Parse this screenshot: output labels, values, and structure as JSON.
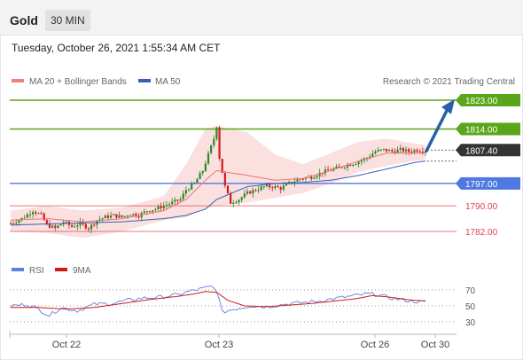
{
  "header": {
    "instrument": "Gold",
    "timeframe": "30 MIN"
  },
  "timestamp": "Tuesday, October 26, 2021 1:55:34 AM CET",
  "legend": {
    "bollinger": "MA 20 + Bollinger Bands",
    "ma50": "MA 50",
    "copyright": "Research © 2021 Trading Central"
  },
  "rsi_legend": {
    "rsi": "RSI",
    "ma9": "9MA"
  },
  "colors": {
    "resistance": "#5aa61a",
    "support_main": "#4f79e0",
    "support_minor": "#e0424a",
    "candle_up": "#2a8a2a",
    "candle_down": "#d11a1a",
    "bollinger_fill": "#fad6d6",
    "ma20": "#f07070",
    "ma50": "#3a5fb0",
    "arrow": "#2c5fa8",
    "current_price": "#333333",
    "rsi": "#5b7fe0",
    "rsi_ma": "#d31818"
  },
  "chart_data": [
    {
      "type": "candlestick",
      "x_ticks": [
        "Oct 22",
        "Oct 23",
        "Oct 26",
        "Oct 30"
      ],
      "y_range": [
        1778,
        1826
      ],
      "levels": [
        {
          "value": 1823.0,
          "label": "1823.00",
          "kind": "resistance"
        },
        {
          "value": 1814.0,
          "label": "1814.00",
          "kind": "resistance"
        },
        {
          "value": 1807.4,
          "label": "1807.40",
          "kind": "current"
        },
        {
          "value": 1797.0,
          "label": "1797.00",
          "kind": "support-main"
        },
        {
          "value": 1790.0,
          "label": "1790.00",
          "kind": "support-minor"
        },
        {
          "value": 1782.0,
          "label": "1782.00",
          "kind": "support-minor"
        }
      ],
      "price_path": [
        [
          0,
          1784.5
        ],
        [
          4,
          1786
        ],
        [
          8,
          1788.5
        ],
        [
          11,
          1787
        ],
        [
          13,
          1784
        ],
        [
          16,
          1783
        ],
        [
          19,
          1785
        ],
        [
          22,
          1783.5
        ],
        [
          25,
          1784.5
        ],
        [
          28,
          1783
        ],
        [
          31,
          1785.5
        ],
        [
          34,
          1786.5
        ],
        [
          37,
          1787
        ],
        [
          40,
          1786.5
        ],
        [
          43,
          1787.5
        ],
        [
          46,
          1787
        ],
        [
          49,
          1788.5
        ],
        [
          52,
          1789
        ],
        [
          55,
          1790
        ],
        [
          58,
          1791
        ],
        [
          61,
          1792
        ],
        [
          63,
          1795
        ],
        [
          66,
          1797
        ],
        [
          69,
          1801
        ],
        [
          71,
          1806
        ],
        [
          73,
          1811
        ],
        [
          74,
          1815
        ],
        [
          75,
          1805
        ],
        [
          77,
          1796
        ],
        [
          79,
          1791
        ],
        [
          82,
          1792
        ],
        [
          85,
          1794
        ],
        [
          88,
          1795
        ],
        [
          91,
          1796
        ],
        [
          94,
          1796
        ],
        [
          97,
          1795.5
        ],
        [
          100,
          1797
        ],
        [
          104,
          1798.5
        ],
        [
          108,
          1799
        ],
        [
          112,
          1800.5
        ],
        [
          116,
          1801.5
        ],
        [
          120,
          1802.5
        ],
        [
          124,
          1803.5
        ],
        [
          128,
          1805
        ],
        [
          131,
          1807
        ],
        [
          134,
          1807.5
        ],
        [
          137,
          1807
        ],
        [
          140,
          1807.5
        ],
        [
          143,
          1807
        ],
        [
          146,
          1807.5
        ],
        [
          149,
          1807.3
        ]
      ],
      "bollinger": {
        "upper": [
          [
            0,
            1788.5
          ],
          [
            13,
            1790
          ],
          [
            26,
            1788.5
          ],
          [
            40,
            1789.5
          ],
          [
            55,
            1793
          ],
          [
            63,
            1803
          ],
          [
            70,
            1814
          ],
          [
            74,
            1815
          ],
          [
            85,
            1813
          ],
          [
            95,
            1806
          ],
          [
            105,
            1803
          ],
          [
            115,
            1806.5
          ],
          [
            125,
            1810
          ],
          [
            135,
            1811
          ],
          [
            145,
            1809.5
          ],
          [
            149,
            1809
          ]
        ],
        "lower": [
          [
            0,
            1782
          ],
          [
            13,
            1781.5
          ],
          [
            26,
            1780
          ],
          [
            40,
            1782
          ],
          [
            55,
            1785.5
          ],
          [
            63,
            1786.5
          ],
          [
            70,
            1789
          ],
          [
            74,
            1790
          ],
          [
            85,
            1791
          ],
          [
            95,
            1792.5
          ],
          [
            105,
            1794
          ],
          [
            115,
            1797
          ],
          [
            125,
            1800.5
          ],
          [
            135,
            1802.5
          ],
          [
            145,
            1804
          ],
          [
            149,
            1804.5
          ]
        ]
      },
      "ma20": [
        [
          0,
          1785.5
        ],
        [
          13,
          1786
        ],
        [
          26,
          1785
        ],
        [
          40,
          1786
        ],
        [
          55,
          1788.5
        ],
        [
          63,
          1792
        ],
        [
          70,
          1798
        ],
        [
          74,
          1801
        ],
        [
          85,
          1799.5
        ],
        [
          95,
          1798
        ],
        [
          105,
          1798.5
        ],
        [
          115,
          1801
        ],
        [
          125,
          1804
        ],
        [
          135,
          1806.5
        ],
        [
          145,
          1806.5
        ],
        [
          149,
          1806.5
        ]
      ],
      "ma50": [
        [
          0,
          1784
        ],
        [
          20,
          1784.5
        ],
        [
          40,
          1785
        ],
        [
          55,
          1786
        ],
        [
          63,
          1787
        ],
        [
          70,
          1789
        ],
        [
          74,
          1792
        ],
        [
          85,
          1796
        ],
        [
          95,
          1797
        ],
        [
          105,
          1797.3
        ],
        [
          115,
          1798
        ],
        [
          125,
          1799.5
        ],
        [
          135,
          1801.5
        ],
        [
          145,
          1803.5
        ],
        [
          149,
          1804
        ]
      ],
      "projection": {
        "from": 1807.4,
        "to": 1822.5
      }
    },
    {
      "type": "line",
      "name": "RSI",
      "y_ticks": [
        70,
        50,
        30
      ],
      "y_range": [
        20,
        80
      ],
      "rsi": [
        [
          0,
          50
        ],
        [
          6,
          52
        ],
        [
          10,
          46
        ],
        [
          14,
          38
        ],
        [
          18,
          48
        ],
        [
          24,
          44
        ],
        [
          30,
          52
        ],
        [
          36,
          53
        ],
        [
          42,
          57
        ],
        [
          48,
          60
        ],
        [
          54,
          61
        ],
        [
          60,
          64
        ],
        [
          64,
          68
        ],
        [
          68,
          71
        ],
        [
          72,
          74
        ],
        [
          74,
          70
        ],
        [
          76,
          42
        ],
        [
          80,
          46
        ],
        [
          86,
          50
        ],
        [
          92,
          49
        ],
        [
          98,
          52
        ],
        [
          104,
          54
        ],
        [
          110,
          56
        ],
        [
          116,
          59
        ],
        [
          120,
          61
        ],
        [
          124,
          63
        ],
        [
          128,
          65
        ],
        [
          132,
          64
        ],
        [
          136,
          60
        ],
        [
          140,
          58
        ],
        [
          144,
          56
        ],
        [
          148,
          55
        ],
        [
          149,
          55
        ]
      ],
      "ma9": [
        [
          0,
          48
        ],
        [
          10,
          48
        ],
        [
          20,
          46
        ],
        [
          30,
          48
        ],
        [
          40,
          53
        ],
        [
          50,
          58
        ],
        [
          60,
          62
        ],
        [
          66,
          65
        ],
        [
          70,
          68
        ],
        [
          74,
          67
        ],
        [
          78,
          57
        ],
        [
          84,
          50
        ],
        [
          92,
          49
        ],
        [
          100,
          51
        ],
        [
          108,
          53
        ],
        [
          116,
          56
        ],
        [
          124,
          59
        ],
        [
          130,
          63
        ],
        [
          136,
          61
        ],
        [
          142,
          58
        ],
        [
          149,
          56
        ]
      ]
    }
  ]
}
